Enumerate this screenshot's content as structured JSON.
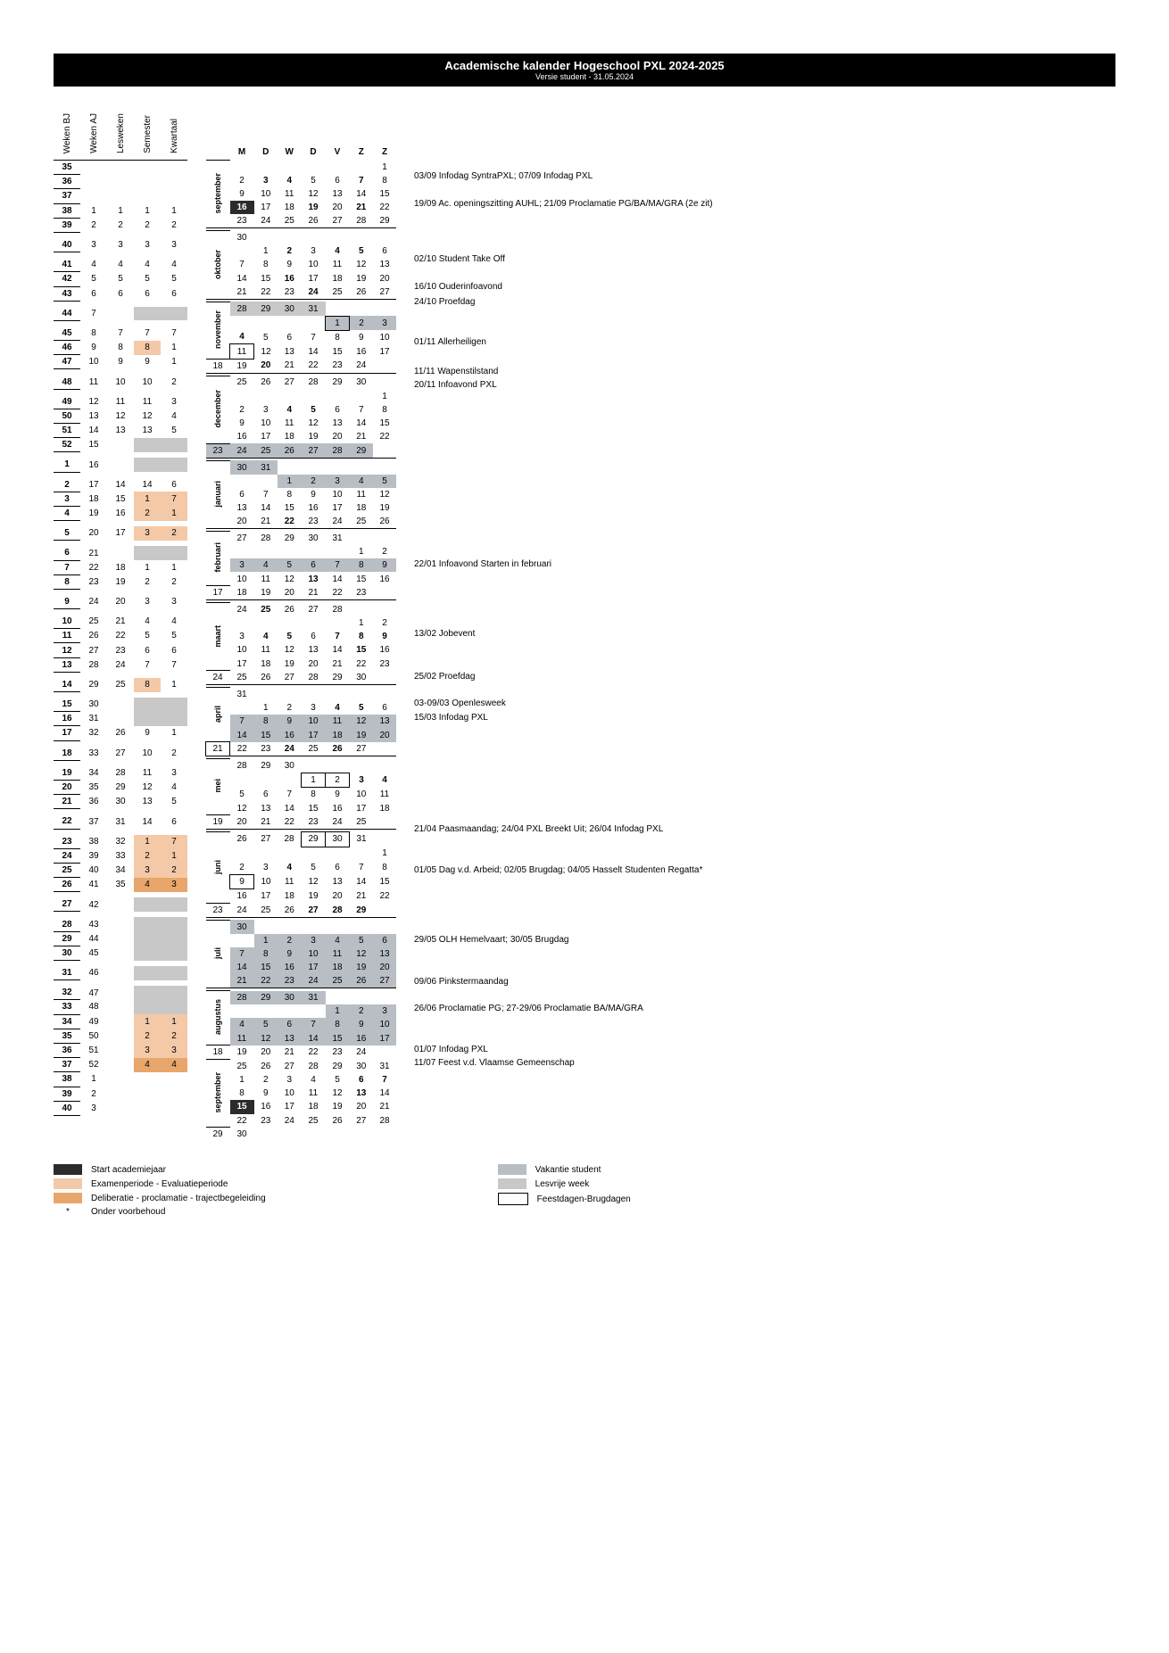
{
  "title": "Academische kalender Hogeschool PXL 2024-2025",
  "subtitle": "Versie student - 31.05.2024",
  "week_headers": [
    "Weken BJ",
    "Weken AJ",
    "Lesweken",
    "Semester",
    "Kwartaal"
  ],
  "day_headers": [
    "M",
    "D",
    "W",
    "D",
    "V",
    "Z",
    "Z"
  ],
  "legend_left": [
    {
      "cls": "black",
      "label": "Start academiejaar"
    },
    {
      "cls": "orange",
      "label": "Examenperiode - Evaluatieperiode"
    },
    {
      "cls": "dorange",
      "label": "Deliberatie - proclamatie - trajectbegeleiding"
    },
    {
      "cls": "star",
      "label": "Onder voorbehoud",
      "star": "*"
    }
  ],
  "legend_right": [
    {
      "cls": "grey",
      "label": "Vakantie student"
    },
    {
      "cls": "lgrey",
      "label": "Lesvrije week"
    },
    {
      "cls": "box",
      "label": "Feestdagen-Brugdagen"
    }
  ]
}
